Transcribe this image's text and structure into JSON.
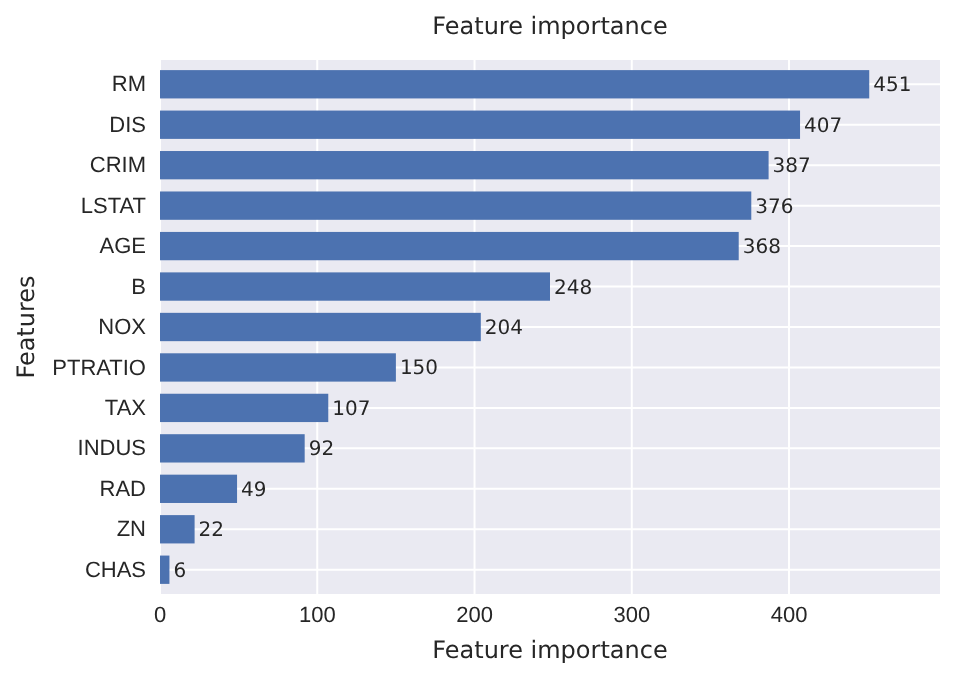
{
  "chart_data": {
    "type": "bar",
    "orientation": "horizontal",
    "title": "Feature importance",
    "xlabel": "Feature importance",
    "ylabel": "Features",
    "categories": [
      "RM",
      "DIS",
      "CRIM",
      "LSTAT",
      "AGE",
      "B",
      "NOX",
      "PTRATIO",
      "TAX",
      "INDUS",
      "RAD",
      "ZN",
      "CHAS"
    ],
    "values": [
      451,
      407,
      387,
      376,
      368,
      248,
      204,
      150,
      107,
      92,
      49,
      22,
      6
    ],
    "color": "#4c72b0",
    "xlim": [
      0,
      496
    ],
    "xticks": [
      0,
      100,
      200,
      300,
      400
    ],
    "grid": true,
    "data_labels": true
  }
}
